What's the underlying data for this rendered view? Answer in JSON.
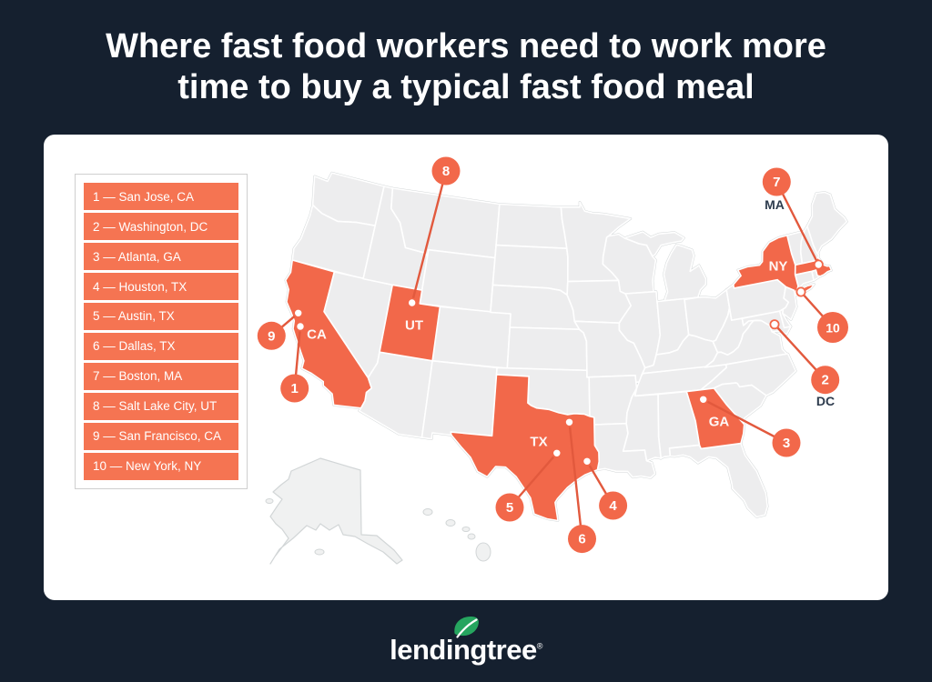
{
  "title": {
    "line1": "Where fast food workers need to work more",
    "line2": "time to buy a typical fast food meal"
  },
  "legend": {
    "items": [
      "1 — San Jose, CA",
      "2 — Washington, DC",
      "3 — Atlanta, GA",
      "4 — Houston, TX",
      "5 — Austin, TX",
      "6 — Dallas, TX",
      "7 — Boston, MA",
      "8 — Salt Lake City, UT",
      "9 — San Francisco, CA",
      "10 — New York, NY"
    ]
  },
  "map": {
    "state_labels": [
      "CA",
      "UT",
      "TX",
      "GA",
      "NY"
    ],
    "external_labels": [
      "MA",
      "DC"
    ],
    "markers": [
      {
        "number": "1",
        "city": "San Jose, CA"
      },
      {
        "number": "2",
        "city": "Washington, DC"
      },
      {
        "number": "3",
        "city": "Atlanta, GA"
      },
      {
        "number": "4",
        "city": "Houston, TX"
      },
      {
        "number": "5",
        "city": "Austin, TX"
      },
      {
        "number": "6",
        "city": "Dallas, TX"
      },
      {
        "number": "7",
        "city": "Boston, MA"
      },
      {
        "number": "8",
        "city": "Salt Lake City, UT"
      },
      {
        "number": "9",
        "city": "San Francisco, CA"
      },
      {
        "number": "10",
        "city": "New York, NY"
      }
    ]
  },
  "logo": {
    "text": "lendingtree",
    "registered": "®"
  },
  "colors": {
    "background": "#15202f",
    "accent": "#f2684a",
    "connector": "#e2593d",
    "legend_row": "#f57452",
    "state_gray": "#ededee",
    "map_halo": "#d2d6d7",
    "dark_label": "#2e3c4e",
    "leaf_green": "#26a55f",
    "title_text": "#ffffff"
  }
}
